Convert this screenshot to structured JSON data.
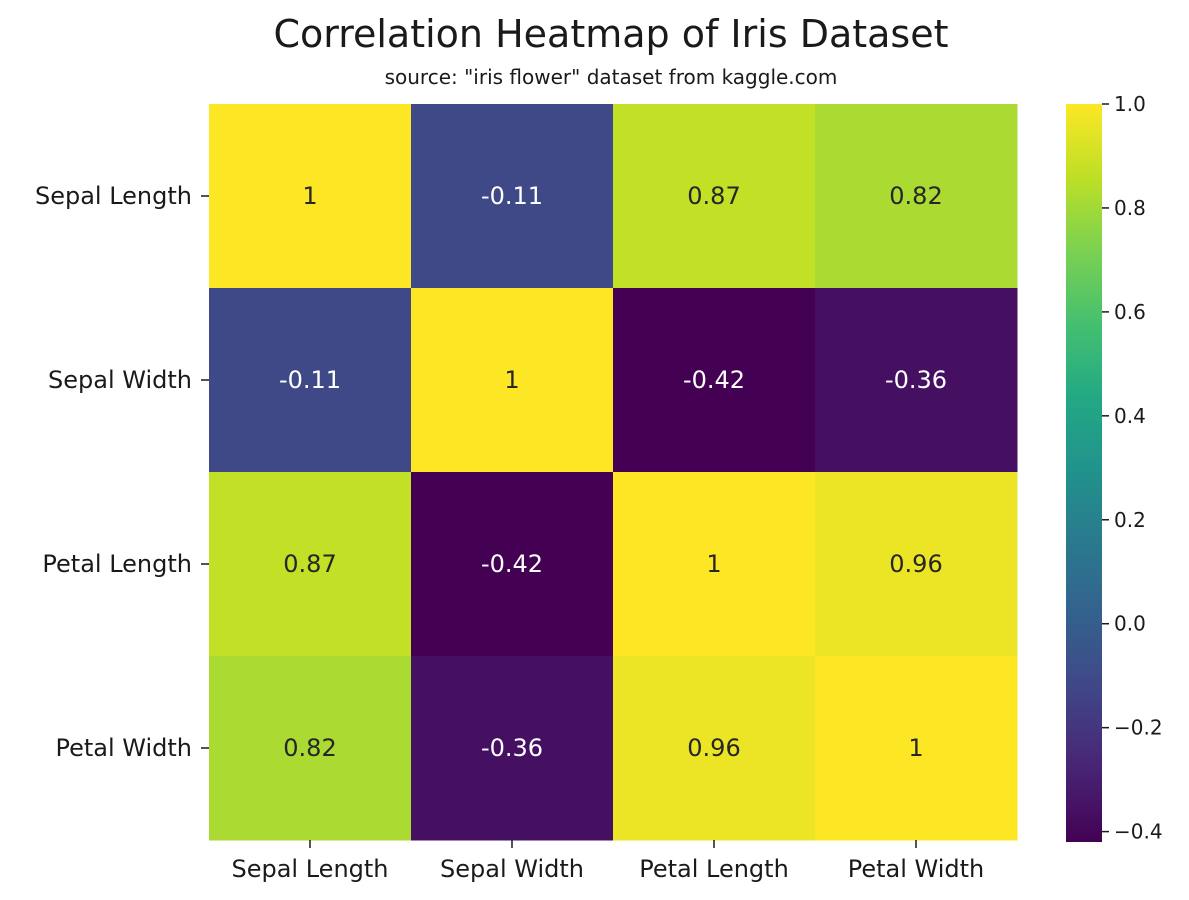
{
  "chart_data": {
    "type": "heatmap",
    "title": "Correlation Heatmap of Iris Dataset",
    "subtitle": "source: \"iris flower\" dataset from kaggle.com",
    "x_categories": [
      "Sepal Length",
      "Sepal Width",
      "Petal Length",
      "Petal Width"
    ],
    "y_categories": [
      "Sepal Length",
      "Sepal Width",
      "Petal Length",
      "Petal Width"
    ],
    "values": [
      [
        1,
        -0.11,
        0.87,
        0.82
      ],
      [
        -0.11,
        1,
        -0.42,
        -0.36
      ],
      [
        0.87,
        -0.42,
        1,
        0.96
      ],
      [
        0.82,
        -0.36,
        0.96,
        1
      ]
    ],
    "cell_labels": [
      [
        "1",
        "-0.11",
        "0.87",
        "0.82"
      ],
      [
        "-0.11",
        "1",
        "-0.42",
        "-0.36"
      ],
      [
        "0.87",
        "-0.42",
        "1",
        "0.96"
      ],
      [
        "0.82",
        "-0.36",
        "0.96",
        "1"
      ]
    ],
    "colormap": "viridis",
    "vmin": -0.42,
    "vmax": 1.0,
    "colorbar_ticks": [
      1.0,
      0.8,
      0.6,
      0.4,
      0.2,
      0.0,
      -0.2,
      -0.4
    ],
    "colorbar_tick_labels": [
      "1.0",
      "0.8",
      "0.6",
      "0.4",
      "0.2",
      "0.0",
      "−0.2",
      "−0.4"
    ],
    "grid": false,
    "colorbar_position": "right"
  }
}
